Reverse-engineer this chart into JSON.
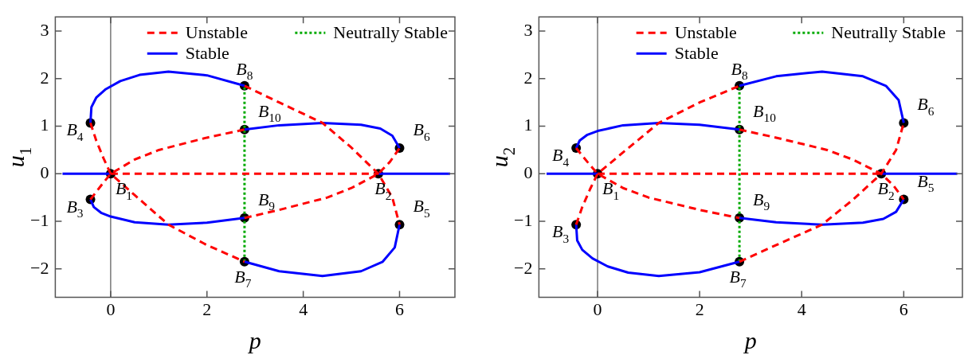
{
  "chart_data": [
    {
      "type": "line",
      "xlabel": "p",
      "ylabel": "u$_{1}$",
      "xlim": [
        -1.15,
        7.15
      ],
      "ylim": [
        -2.6,
        3.3
      ],
      "xticks": [
        0,
        2,
        4,
        6
      ],
      "yticks": [
        -2,
        -1,
        0,
        1,
        2,
        3
      ],
      "grid": false,
      "legend": "top",
      "marker": "none",
      "ref_lines": [
        {
          "axis": "x",
          "value": 0,
          "color": "#555555"
        }
      ],
      "series": [
        {
          "name": "Unstable",
          "color": "#ff0000",
          "line_style": "dashed",
          "x": [
            -0.42,
            -0.3,
            -0.15,
            0,
            0.5,
            1.2,
            2,
            2.78,
            null,
            -0.42,
            -0.2,
            0,
            0.5,
            1,
            2,
            2.78,
            null,
            2.78,
            3.5,
            4.4,
            5,
            5.56,
            5.85,
            6,
            null,
            2.78,
            3.5,
            4.5,
            5,
            5.56,
            5.8,
            6,
            null,
            0,
            5.56
          ],
          "values": [
            1.07,
            0.7,
            0.33,
            0,
            -0.45,
            -1.07,
            -1.5,
            -1.85,
            null,
            -0.54,
            -0.25,
            0,
            0.3,
            0.5,
            0.76,
            0.93,
            null,
            1.85,
            1.5,
            1.07,
            0.55,
            0,
            -0.5,
            -1.07,
            null,
            -0.93,
            -0.76,
            -0.5,
            -0.3,
            0,
            0.25,
            0.54,
            null,
            0,
            0
          ]
        },
        {
          "name": "Stable",
          "color": "#0000ff",
          "line_style": "solid",
          "x": [
            -0.42,
            -0.4,
            -0.3,
            -0.1,
            0.2,
            0.6,
            1.2,
            2,
            2.78,
            null,
            -0.42,
            -0.35,
            -0.2,
            0,
            0.5,
            1.2,
            2,
            2.78,
            null,
            2.78,
            3.5,
            4.4,
            5.2,
            5.6,
            5.85,
            6,
            null,
            2.78,
            3.5,
            4.4,
            5.2,
            5.65,
            5.9,
            6,
            null,
            -1,
            0,
            null,
            5.56,
            7.05
          ],
          "values": [
            1.07,
            1.4,
            1.6,
            1.78,
            1.95,
            2.08,
            2.15,
            2.07,
            1.85,
            null,
            -0.54,
            -0.7,
            -0.82,
            -0.9,
            -1.02,
            -1.07,
            -1.03,
            -0.93,
            null,
            0.93,
            1.02,
            1.07,
            1.03,
            0.95,
            0.8,
            0.54,
            null,
            -1.85,
            -2.05,
            -2.15,
            -2.05,
            -1.85,
            -1.55,
            -1.07,
            null,
            0,
            0,
            null,
            0,
            0
          ]
        },
        {
          "name": "Neutrally Stable",
          "color": "#00aa00",
          "line_style": "dotted",
          "x": [
            2.78,
            2.78
          ],
          "values": [
            -1.85,
            1.85
          ]
        },
        {
          "type": "scatter",
          "color": "#000000",
          "marker": "circle",
          "x": [
            0,
            5.56,
            -0.42,
            -0.42,
            6,
            6,
            2.78,
            2.78,
            2.78,
            2.78
          ],
          "values": [
            0,
            0,
            -0.54,
            1.07,
            -1.07,
            0.54,
            -1.85,
            1.85,
            -0.93,
            0.93
          ]
        }
      ],
      "annotations": [
        {
          "text": "B$_{1}$",
          "x": 0,
          "y": 0
        },
        {
          "text": "B$_{2}$",
          "x": 5.56,
          "y": 0
        },
        {
          "text": "B$_{3}$",
          "x": -0.42,
          "y": -0.54
        },
        {
          "text": "B$_{4}$",
          "x": -0.42,
          "y": 1.07
        },
        {
          "text": "B$_{5}$",
          "x": 6,
          "y": -1.07
        },
        {
          "text": "B$_{6}$",
          "x": 6,
          "y": 0.54
        },
        {
          "text": "B$_{7}$",
          "x": 2.78,
          "y": -1.85
        },
        {
          "text": "B$_{8}$",
          "x": 2.78,
          "y": 1.85
        },
        {
          "text": "B$_{9}$",
          "x": 2.78,
          "y": -0.93
        },
        {
          "text": "B$_{10}$",
          "x": 2.78,
          "y": 0.93
        }
      ]
    },
    {
      "type": "line",
      "xlabel": "p",
      "ylabel": "u$_{2}$",
      "xlim": [
        -1.15,
        7.15
      ],
      "ylim": [
        -2.6,
        3.3
      ],
      "xticks": [
        0,
        2,
        4,
        6
      ],
      "yticks": [
        -2,
        -1,
        0,
        1,
        2,
        3
      ],
      "grid": false,
      "legend": "top",
      "marker": "none",
      "ref_lines": [
        {
          "axis": "x",
          "value": 0,
          "color": "#555555"
        }
      ],
      "series": [
        {
          "name": "Unstable",
          "color": "#ff0000",
          "line_style": "dashed",
          "x": [
            -0.42,
            -0.3,
            -0.15,
            0,
            0.5,
            1.2,
            2,
            2.78,
            null,
            -0.42,
            -0.2,
            0,
            0.5,
            1,
            2,
            2.78,
            null,
            2.78,
            3.5,
            4.4,
            5,
            5.56,
            5.85,
            6,
            null,
            2.78,
            3.5,
            4.5,
            5,
            5.56,
            5.8,
            6,
            null,
            0,
            5.56
          ],
          "values": [
            -1.07,
            -0.7,
            -0.33,
            0,
            0.45,
            1.07,
            1.5,
            1.85,
            null,
            0.54,
            0.25,
            0,
            -0.3,
            -0.5,
            -0.76,
            -0.93,
            null,
            -1.85,
            -1.5,
            -1.07,
            -0.55,
            0,
            0.5,
            1.07,
            null,
            0.93,
            0.76,
            0.5,
            0.3,
            0,
            -0.25,
            -0.54,
            null,
            0,
            0
          ]
        },
        {
          "name": "Stable",
          "color": "#0000ff",
          "line_style": "solid",
          "x": [
            -0.42,
            -0.4,
            -0.3,
            -0.1,
            0.2,
            0.6,
            1.2,
            2,
            2.78,
            null,
            -0.42,
            -0.35,
            -0.2,
            0,
            0.5,
            1.2,
            2,
            2.78,
            null,
            2.78,
            3.5,
            4.4,
            5.2,
            5.6,
            5.85,
            6,
            null,
            2.78,
            3.5,
            4.4,
            5.2,
            5.65,
            5.9,
            6,
            null,
            -1,
            0,
            null,
            5.56,
            7.05
          ],
          "values": [
            -1.07,
            -1.4,
            -1.6,
            -1.78,
            -1.95,
            -2.08,
            -2.15,
            -2.07,
            -1.85,
            null,
            0.54,
            0.7,
            0.82,
            0.9,
            1.02,
            1.07,
            1.03,
            0.93,
            null,
            -0.93,
            -1.02,
            -1.07,
            -1.03,
            -0.95,
            -0.8,
            -0.54,
            null,
            1.85,
            2.05,
            2.15,
            2.05,
            1.85,
            1.55,
            1.07,
            null,
            0,
            0,
            null,
            0,
            0
          ]
        },
        {
          "name": "Neutrally Stable",
          "color": "#00aa00",
          "line_style": "dotted",
          "x": [
            2.78,
            2.78
          ],
          "values": [
            -1.85,
            1.85
          ]
        },
        {
          "type": "scatter",
          "color": "#000000",
          "marker": "circle",
          "x": [
            0,
            5.56,
            -0.42,
            -0.42,
            6,
            6,
            2.78,
            2.78,
            2.78,
            2.78
          ],
          "values": [
            0,
            0,
            -1.07,
            0.54,
            -0.54,
            1.07,
            -1.85,
            1.85,
            -0.93,
            0.93
          ]
        }
      ],
      "annotations": [
        {
          "text": "B$_{1}$",
          "x": 0,
          "y": 0
        },
        {
          "text": "B$_{2}$",
          "x": 5.56,
          "y": 0
        },
        {
          "text": "B$_{3}$",
          "x": -0.42,
          "y": -1.07
        },
        {
          "text": "B$_{4}$",
          "x": -0.42,
          "y": 0.54
        },
        {
          "text": "B$_{5}$",
          "x": 6,
          "y": -0.54
        },
        {
          "text": "B$_{6}$",
          "x": 6,
          "y": 1.07
        },
        {
          "text": "B$_{7}$",
          "x": 2.78,
          "y": -1.85
        },
        {
          "text": "B$_{8}$",
          "x": 2.78,
          "y": 1.85
        },
        {
          "text": "B$_{9}$",
          "x": 2.78,
          "y": -0.93
        },
        {
          "text": "B$_{10}$",
          "x": 2.78,
          "y": 0.93
        }
      ]
    }
  ]
}
